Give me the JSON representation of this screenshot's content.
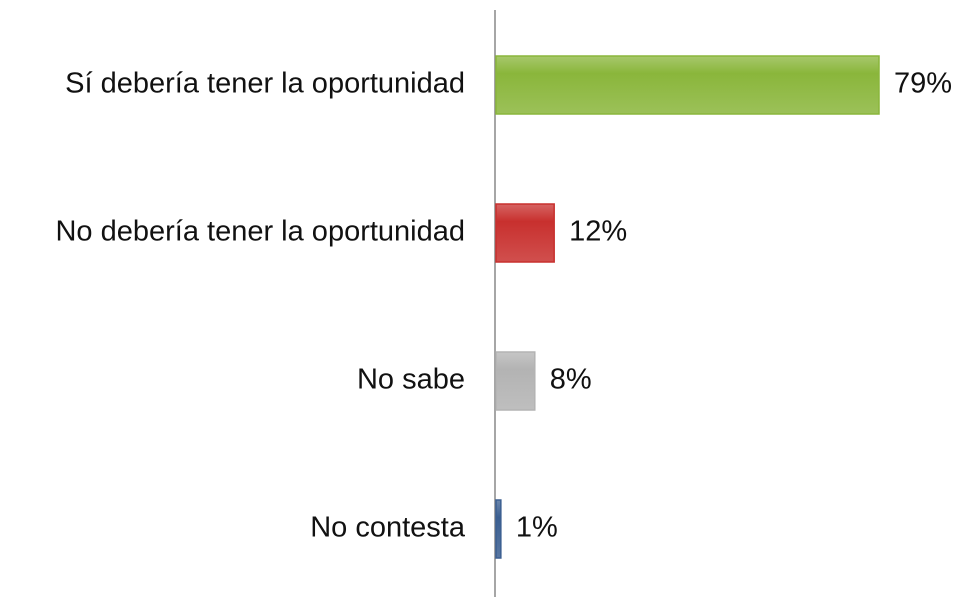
{
  "chart_data": {
    "type": "bar",
    "orientation": "horizontal",
    "categories": [
      "Sí debería tener la oportunidad",
      "No debería tener la oportunidad",
      "No sabe",
      "No contesta"
    ],
    "values": [
      79,
      12,
      8,
      1
    ],
    "value_labels": [
      "79%",
      "12%",
      "8%",
      "1%"
    ],
    "colors": [
      "#8ab63b",
      "#c8302e",
      "#b3b3b3",
      "#3b5f91"
    ]
  }
}
